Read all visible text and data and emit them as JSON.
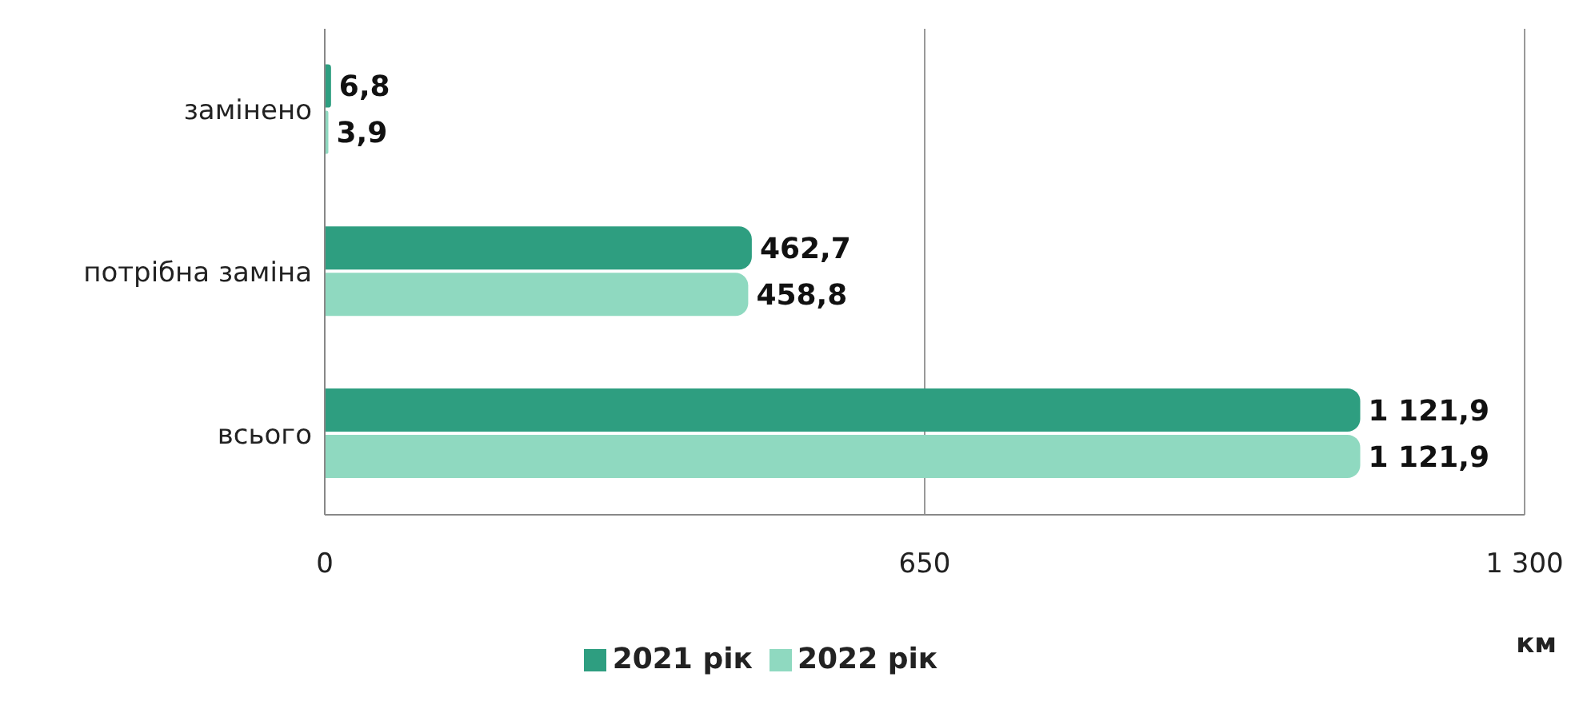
{
  "chart_data": {
    "type": "bar",
    "orientation": "horizontal",
    "xlabel": "км",
    "categories": [
      "замінено",
      "потрібна заміна",
      "всього"
    ],
    "series": [
      {
        "name": "2021 рік",
        "color": "#2e9e80",
        "values": [
          6.8,
          462.7,
          1121.9
        ],
        "value_labels": [
          "6,8",
          "462,7",
          "1 121,9"
        ]
      },
      {
        "name": "2022 рік",
        "color": "#8fd9c0",
        "values": [
          3.9,
          458.8,
          1121.9
        ],
        "value_labels": [
          "3,9",
          "458,8",
          "1 121,9"
        ]
      }
    ],
    "xlim": [
      0,
      1300
    ],
    "xticks": [
      0,
      650,
      {
        "value": 1300,
        "label": "1 300"
      }
    ],
    "grid": "x",
    "legend": "bottom"
  }
}
